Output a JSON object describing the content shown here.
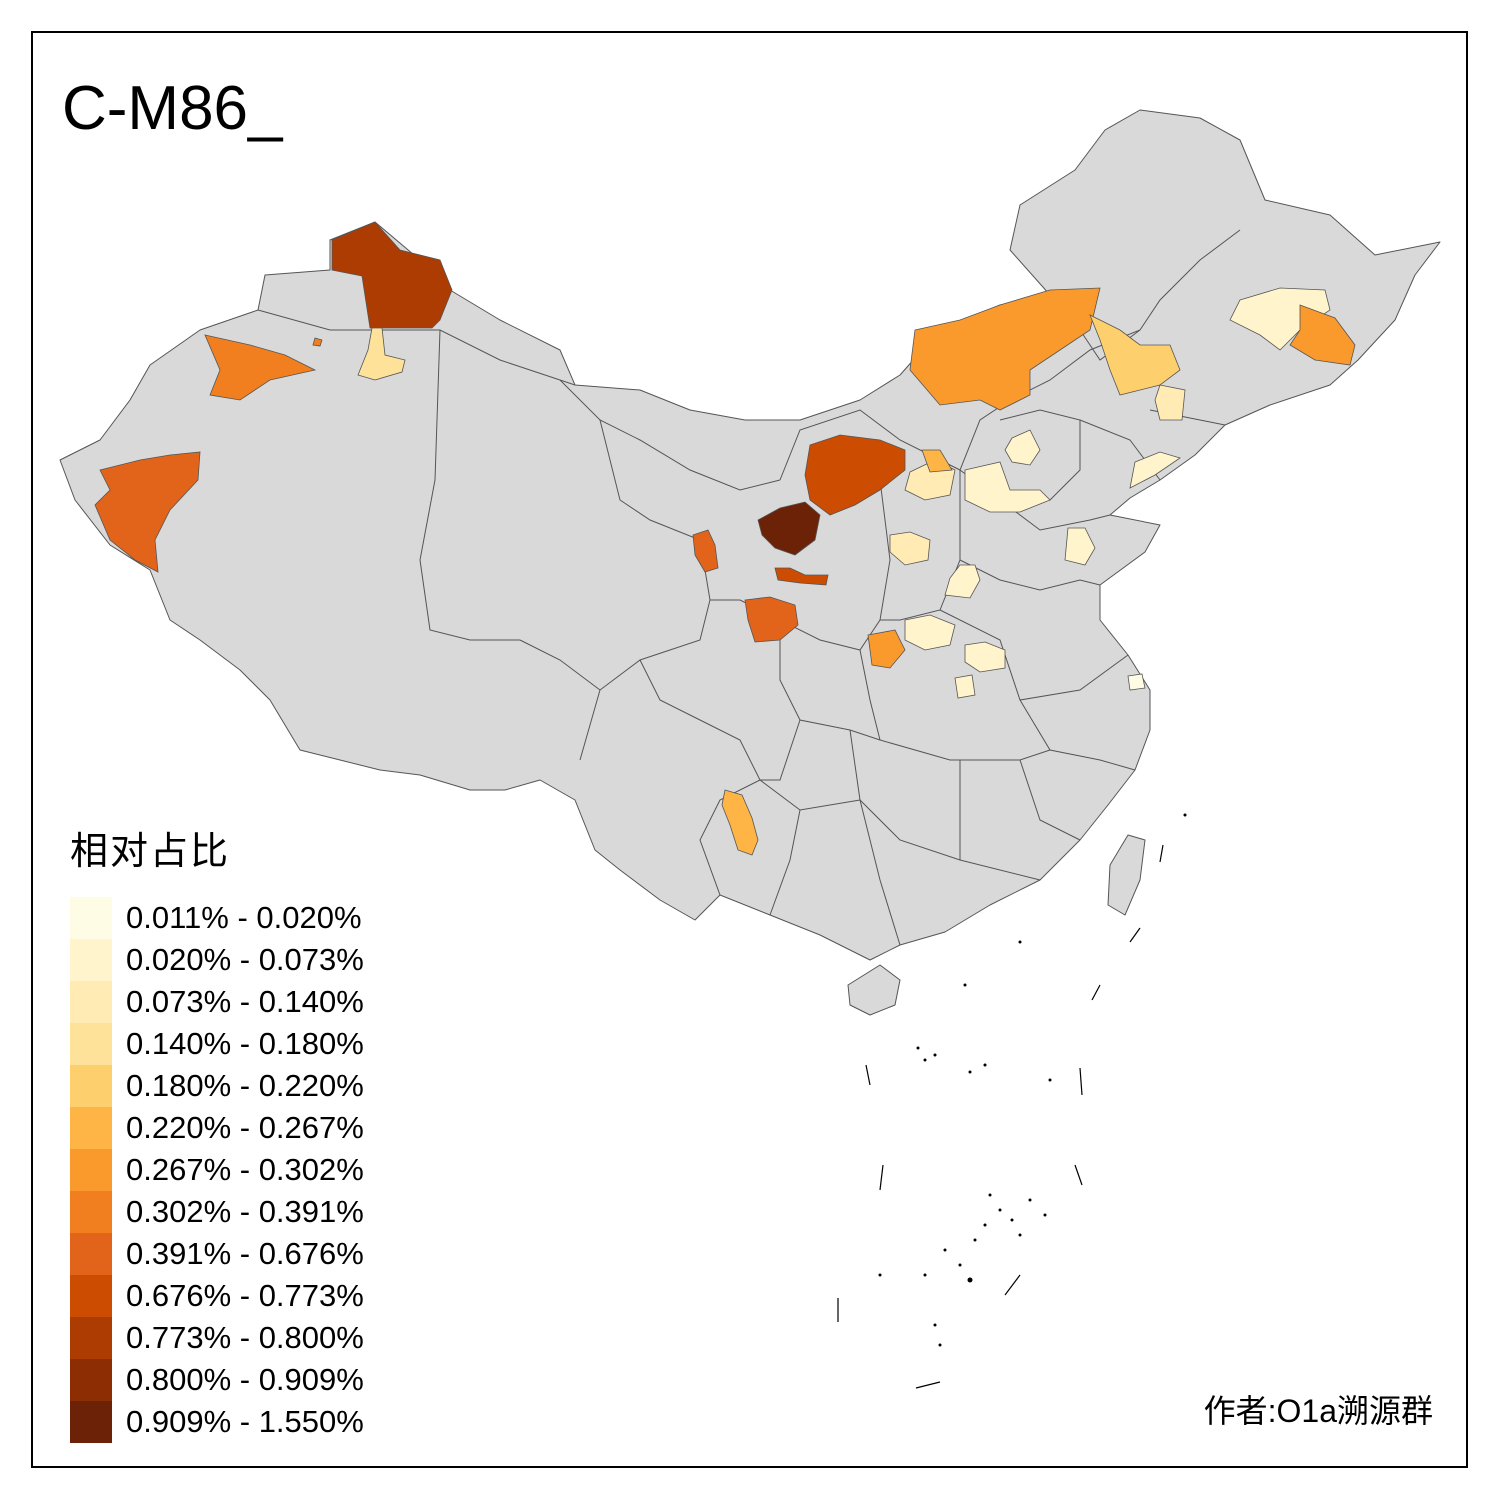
{
  "title": "C-M86_",
  "legend": {
    "title": "相对占比",
    "items": [
      {
        "label": "0.011% - 0.020%",
        "color": "#FFFCE6"
      },
      {
        "label": "0.020% - 0.073%",
        "color": "#FFF4CB"
      },
      {
        "label": "0.073% - 0.140%",
        "color": "#FFEBB3"
      },
      {
        "label": "0.140% - 0.180%",
        "color": "#FEE29A"
      },
      {
        "label": "0.180% - 0.220%",
        "color": "#FECF6D"
      },
      {
        "label": "0.220% - 0.267%",
        "color": "#FEB546"
      },
      {
        "label": "0.267% - 0.302%",
        "color": "#FB9A2C"
      },
      {
        "label": "0.302% - 0.391%",
        "color": "#F27F1F"
      },
      {
        "label": "0.391% - 0.676%",
        "color": "#E2641A"
      },
      {
        "label": "0.676% - 0.773%",
        "color": "#CC4C02"
      },
      {
        "label": "0.773% - 0.800%",
        "color": "#AD3C03"
      },
      {
        "label": "0.800% - 0.909%",
        "color": "#8C2D04"
      },
      {
        "label": "0.909% - 1.550%",
        "color": "#6B2207"
      }
    ]
  },
  "credit": "作者:O1a溯源群",
  "map_colors": {
    "base": "#D9D9D9",
    "border": "#555555"
  }
}
